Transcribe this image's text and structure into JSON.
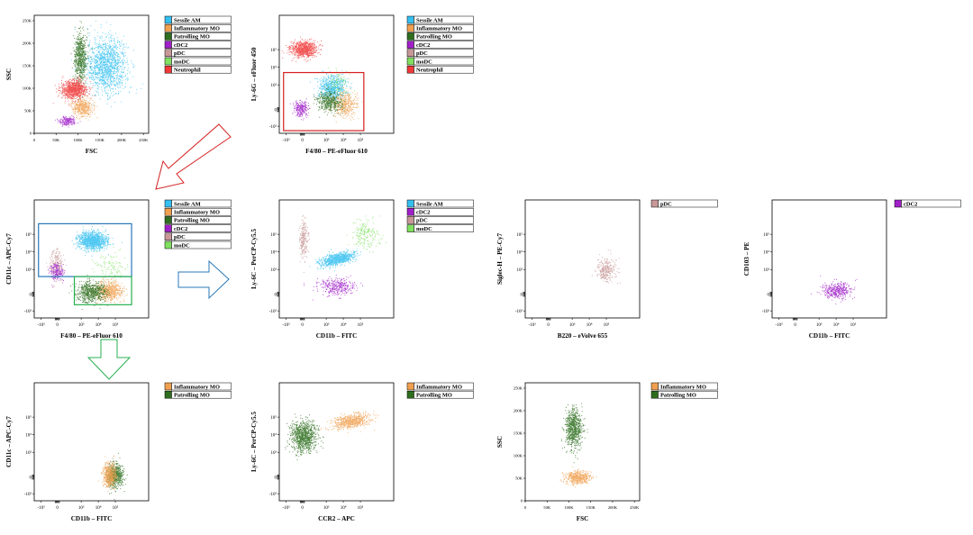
{
  "colors": {
    "Sessile AM": "#35c0f0",
    "Inflammatory MO": "#f0a050",
    "Patrolling MO": "#2e6e1e",
    "cDC2": "#a020c8",
    "pDC": "#c89898",
    "moDC": "#80e060",
    "Neutrophil": "#f03838",
    "gate_red": "#d42020",
    "gate_blue": "#2878b8",
    "gate_green": "#28b050"
  },
  "chart_data": [
    {
      "id": "p1",
      "type": "scatter",
      "xlabel": "FSC",
      "ylabel": "SSC",
      "xscale": "linear",
      "yscale": "linear",
      "xlim": [
        0,
        250000
      ],
      "ylim": [
        0,
        250000
      ],
      "xticks": [
        "0",
        "50K",
        "100K",
        "150K",
        "200K",
        "250K"
      ],
      "yticks": [
        "0",
        "50K",
        "100K",
        "150K",
        "200K",
        "250K"
      ],
      "legend": [
        "Sessile AM",
        "Inflammatory MO",
        "Patrolling MO",
        "cDC2",
        "pDC",
        "moDC",
        "Neutrophil"
      ],
      "series": [
        {
          "name": "Sessile AM",
          "cx": 165000,
          "cy": 152000,
          "sx": 23000,
          "sy": 30000,
          "n": 1400
        },
        {
          "name": "Patrolling MO",
          "cx": 105000,
          "cy": 168000,
          "sx": 7000,
          "sy": 28000,
          "n": 700
        },
        {
          "name": "Neutrophil",
          "cx": 90000,
          "cy": 98000,
          "sx": 15000,
          "sy": 10000,
          "n": 900
        },
        {
          "name": "Inflammatory MO",
          "cx": 110000,
          "cy": 58000,
          "sx": 12000,
          "sy": 10000,
          "n": 450
        },
        {
          "name": "cDC2",
          "cx": 75000,
          "cy": 28000,
          "sx": 9000,
          "sy": 5000,
          "n": 200
        }
      ]
    },
    {
      "id": "p2",
      "type": "scatter",
      "xlabel": "F4/80 – PE-eFluor 610",
      "ylabel": "Ly-6G – eFluor 450",
      "xscale": "biexp",
      "yscale": "biexp",
      "xticks": [
        "-10³",
        "0",
        "10³",
        "10⁴",
        "10⁵"
      ],
      "yticks": [
        "10⁵",
        "10⁴",
        "10³",
        "0",
        "-10³"
      ],
      "legend": [
        "Sessile AM",
        "Inflammatory MO",
        "Patrolling MO",
        "cDC2",
        "pDC",
        "moDC",
        "Neutrophil"
      ],
      "gate": {
        "color": "gate_red",
        "x": [
          -1.1,
          3.6
        ],
        "y": [
          -1.2,
          2.1
        ]
      },
      "series": [
        {
          "name": "Neutrophil",
          "cx": 0.05,
          "cy": 3.45,
          "sx": 0.38,
          "sy": 0.22,
          "n": 800
        },
        {
          "name": "Sessile AM",
          "cx": 1.75,
          "cy": 1.25,
          "sx": 0.4,
          "sy": 0.35,
          "n": 700
        },
        {
          "name": "Inflammatory MO",
          "cx": 2.45,
          "cy": 0.35,
          "sx": 0.35,
          "sy": 0.35,
          "n": 450
        },
        {
          "name": "Patrolling MO",
          "cx": 1.55,
          "cy": 0.45,
          "sx": 0.35,
          "sy": 0.3,
          "n": 450
        },
        {
          "name": "cDC2",
          "cx": -0.1,
          "cy": 0.05,
          "sx": 0.2,
          "sy": 0.22,
          "n": 250
        },
        {
          "name": "moDC",
          "cx": 2.1,
          "cy": 1.5,
          "sx": 0.35,
          "sy": 0.35,
          "n": 90
        }
      ]
    },
    {
      "id": "p3",
      "type": "scatter",
      "xlabel": "F4/80 – PE-eFluor 610",
      "ylabel": "CD11c – APC-Cy7",
      "xscale": "biexp",
      "yscale": "biexp",
      "xticks": [
        "-10³",
        "0",
        "10³",
        "10⁴",
        "10⁵"
      ],
      "yticks": [
        "10⁵",
        "10⁴",
        "10³",
        "0",
        "-10³"
      ],
      "legend": [
        "Sessile AM",
        "Inflammatory MO",
        "Patrolling MO",
        "cDC2",
        "pDC",
        "moDC"
      ],
      "gates": [
        {
          "color": "gate_blue",
          "x": [
            -1.1,
            4.35
          ],
          "y": [
            1.0,
            4.0
          ]
        },
        {
          "color": "gate_green",
          "x": [
            1.0,
            4.35
          ],
          "y": [
            -0.6,
            1.0
          ]
        }
      ],
      "series": [
        {
          "name": "Sessile AM",
          "cx": 2.05,
          "cy": 3.05,
          "sx": 0.42,
          "sy": 0.25,
          "n": 1200
        },
        {
          "name": "pDC",
          "cx": -0.05,
          "cy": 1.7,
          "sx": 0.2,
          "sy": 0.45,
          "n": 220
        },
        {
          "name": "cDC2",
          "cx": -0.05,
          "cy": 1.25,
          "sx": 0.2,
          "sy": 0.25,
          "n": 200
        },
        {
          "name": "moDC",
          "cx": 3.1,
          "cy": 1.6,
          "sx": 0.45,
          "sy": 0.4,
          "n": 110
        },
        {
          "name": "Inflammatory MO",
          "cx": 3.0,
          "cy": 0.2,
          "sx": 0.4,
          "sy": 0.28,
          "n": 650
        },
        {
          "name": "Patrolling MO",
          "cx": 2.0,
          "cy": 0.15,
          "sx": 0.42,
          "sy": 0.28,
          "n": 700
        }
      ]
    },
    {
      "id": "p4",
      "type": "scatter",
      "xlabel": "CD11b – FITC",
      "ylabel": "Ly-6C – PerCP-Cy5.5",
      "xscale": "biexp",
      "yscale": "biexp",
      "xticks": [
        "-10³",
        "0",
        "10³",
        "10⁴",
        "10⁵"
      ],
      "yticks": [
        "10⁵",
        "10⁴",
        "10³",
        "0",
        "-10³"
      ],
      "legend": [
        "Sessile AM",
        "cDC2",
        "pDC",
        "moDC"
      ],
      "series": [
        {
          "name": "pDC",
          "cx": 0.05,
          "cy": 3.1,
          "sx": 0.12,
          "sy": 0.55,
          "n": 250
        },
        {
          "name": "Sessile AM",
          "cx": 2.0,
          "cy": 2.0,
          "sx": 0.5,
          "sy": 0.2,
          "n": 900,
          "corr": 0.55
        },
        {
          "name": "cDC2",
          "cx": 2.05,
          "cy": 0.45,
          "sx": 0.55,
          "sy": 0.25,
          "n": 350
        },
        {
          "name": "moDC",
          "cx": 3.7,
          "cy": 3.4,
          "sx": 0.4,
          "sy": 0.4,
          "n": 200
        }
      ]
    },
    {
      "id": "p5",
      "type": "scatter",
      "xlabel": "B220 – eVolve 655",
      "ylabel": "Siglec-H – PE-Cy7",
      "xscale": "biexp",
      "yscale": "biexp",
      "xticks": [
        "-10³",
        "0",
        "10³",
        "10⁴",
        "10⁵"
      ],
      "yticks": [
        "10⁵",
        "10⁴",
        "10³",
        "0",
        "-10³"
      ],
      "legend": [
        "pDC"
      ],
      "series": [
        {
          "name": "pDC",
          "cx": 3.35,
          "cy": 1.4,
          "sx": 0.28,
          "sy": 0.35,
          "n": 300
        }
      ]
    },
    {
      "id": "p6",
      "type": "scatter",
      "xlabel": "CD11b – FITC",
      "ylabel": "CD103 – PE",
      "xscale": "biexp",
      "yscale": "biexp",
      "xticks": [
        "-10³",
        "0",
        "10³",
        "10⁴",
        "10⁵"
      ],
      "yticks": [
        "10⁵",
        "10⁴",
        "10³",
        "0",
        "-10³"
      ],
      "legend": [
        "cDC2"
      ],
      "series": [
        {
          "name": "cDC2",
          "cx": 2.4,
          "cy": 0.25,
          "sx": 0.42,
          "sy": 0.22,
          "n": 420
        }
      ]
    },
    {
      "id": "p7",
      "type": "scatter",
      "xlabel": "CD11b – FITC",
      "ylabel": "CD11c – APC-Cy7",
      "xscale": "biexp",
      "yscale": "biexp",
      "xticks": [
        "-10³",
        "0",
        "10³",
        "10⁴",
        "10⁵"
      ],
      "yticks": [
        "10⁵",
        "10⁴",
        "10³",
        "0",
        "-10³"
      ],
      "legend": [
        "Inflammatory MO",
        "Patrolling MO"
      ],
      "series": [
        {
          "name": "Patrolling MO",
          "cx": 3.35,
          "cy": 0.1,
          "sx": 0.22,
          "sy": 0.32,
          "n": 700
        },
        {
          "name": "Inflammatory MO",
          "cx": 3.05,
          "cy": 0.15,
          "sx": 0.18,
          "sy": 0.32,
          "n": 600
        }
      ]
    },
    {
      "id": "p8",
      "type": "scatter",
      "xlabel": "CCR2 – APC",
      "ylabel": "Ly-6C – PerCP-Cy5.5",
      "xscale": "biexp",
      "yscale": "biexp",
      "xticks": [
        "-10³",
        "0",
        "10³",
        "10⁴",
        "10⁵"
      ],
      "yticks": [
        "10⁵",
        "10⁴",
        "10³",
        "0",
        "-10³"
      ],
      "legend": [
        "Inflammatory MO",
        "Patrolling MO"
      ],
      "series": [
        {
          "name": "Inflammatory MO",
          "cx": 2.85,
          "cy": 3.2,
          "sx": 0.55,
          "sy": 0.22,
          "n": 650,
          "corr": 0.35
        },
        {
          "name": "Patrolling MO",
          "cx": 0.05,
          "cy": 2.3,
          "sx": 0.38,
          "sy": 0.45,
          "n": 1000
        }
      ]
    },
    {
      "id": "p9",
      "type": "scatter",
      "xlabel": "FSC",
      "ylabel": "SSC",
      "xscale": "linear",
      "yscale": "linear",
      "xlim": [
        0,
        250000
      ],
      "ylim": [
        0,
        250000
      ],
      "xticks": [
        "0",
        "50K",
        "100K",
        "150K",
        "200K",
        "250K"
      ],
      "yticks": [
        "0",
        "50K",
        "100K",
        "150K",
        "200K",
        "250K"
      ],
      "legend": [
        "Inflammatory MO",
        "Patrolling MO"
      ],
      "series": [
        {
          "name": "Patrolling MO",
          "cx": 110000,
          "cy": 162000,
          "sx": 9000,
          "sy": 22000,
          "n": 800
        },
        {
          "name": "Inflammatory MO",
          "cx": 120000,
          "cy": 52000,
          "sx": 14000,
          "sy": 7000,
          "n": 500
        }
      ]
    }
  ]
}
